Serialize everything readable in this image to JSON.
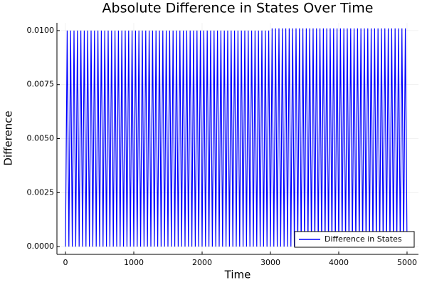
{
  "chart_data": {
    "type": "line",
    "title": "Absolute Difference in States Over Time",
    "x_label": "Time",
    "y_label": "Difference",
    "x": [
      0,
      25,
      50,
      75,
      100,
      125,
      150,
      175,
      200,
      225,
      250,
      275,
      300,
      325,
      350,
      375,
      400,
      425,
      450,
      475,
      500,
      525,
      550,
      575,
      600,
      625,
      650,
      675,
      700,
      725,
      750,
      775,
      800,
      825,
      850,
      875,
      900,
      925,
      950,
      975,
      1000,
      1025,
      1050,
      1075,
      1100,
      1125,
      1150,
      1175,
      1200,
      1225,
      1250,
      1275,
      1300,
      1325,
      1350,
      1375,
      1400,
      1425,
      1450,
      1475,
      1500,
      1525,
      1550,
      1575,
      1600,
      1625,
      1650,
      1675,
      1700,
      1725,
      1750,
      1775,
      1800,
      1825,
      1850,
      1875,
      1900,
      1925,
      1950,
      1975,
      2000,
      2025,
      2050,
      2075,
      2100,
      2125,
      2150,
      2175,
      2200,
      2225,
      2250,
      2275,
      2300,
      2325,
      2350,
      2375,
      2400,
      2425,
      2450,
      2475,
      2500,
      2525,
      2550,
      2575,
      2600,
      2625,
      2650,
      2675,
      2700,
      2725,
      2750,
      2775,
      2800,
      2825,
      2850,
      2875,
      2900,
      2925,
      2950,
      2975,
      3000,
      3025,
      3050,
      3075,
      3100,
      3125,
      3150,
      3175,
      3200,
      3225,
      3250,
      3275,
      3300,
      3325,
      3350,
      3375,
      3400,
      3425,
      3450,
      3475,
      3500,
      3525,
      3550,
      3575,
      3600,
      3625,
      3650,
      3675,
      3700,
      3725,
      3750,
      3775,
      3800,
      3825,
      3850,
      3875,
      3900,
      3925,
      3950,
      3975,
      4000,
      4025,
      4050,
      4075,
      4100,
      4125,
      4150,
      4175,
      4200,
      4225,
      4250,
      4275,
      4300,
      4325,
      4350,
      4375,
      4400,
      4425,
      4450,
      4475,
      4500,
      4525,
      4550,
      4575,
      4600,
      4625,
      4650,
      4675,
      4700,
      4725,
      4750,
      4775,
      4800,
      4825,
      4850,
      4875,
      4900,
      4925,
      4950,
      4975,
      5000
    ],
    "series": [
      {
        "name": "Difference in States",
        "color": "#0000ff",
        "values": [
          0,
          0.01,
          0,
          0.01,
          0,
          0.01,
          0,
          0.01,
          0,
          0.01,
          0,
          0.01,
          0,
          0.01,
          0,
          0.01,
          0,
          0.01,
          0,
          0.01,
          0,
          0.01,
          0,
          0.01,
          0,
          0.01,
          0,
          0.01,
          0,
          0.01,
          0,
          0.01,
          0,
          0.01,
          0,
          0.01,
          0,
          0.01,
          0,
          0.01,
          0,
          0.01,
          0,
          0.01,
          0,
          0.01,
          0,
          0.01,
          0,
          0.01,
          0,
          0.01,
          0,
          0.01,
          0,
          0.01,
          0,
          0.01,
          0,
          0.01,
          0,
          0.01,
          0,
          0.01,
          0,
          0.01,
          0,
          0.01,
          0,
          0.01,
          0,
          0.01,
          0,
          0.01,
          0,
          0.01,
          0,
          0.01,
          0,
          0.01,
          0,
          0.01,
          0,
          0.01,
          0,
          0.01,
          0,
          0.01,
          0,
          0.01,
          0,
          0.01,
          0,
          0.01,
          0,
          0.01,
          0,
          0.01,
          0,
          0.01,
          0,
          0.01,
          0,
          0.01,
          0,
          0.01,
          0,
          0.01,
          0,
          0.01,
          0,
          0.01,
          0,
          0.01,
          0,
          0.01,
          0,
          0.01,
          0,
          0.01,
          0,
          0.0101,
          0,
          0.0101,
          0,
          0.0101,
          0,
          0.0101,
          0,
          0.0101,
          0,
          0.0101,
          0,
          0.0101,
          0,
          0.0101,
          0,
          0.0101,
          0,
          0.0101,
          0,
          0.0101,
          0,
          0.0101,
          0,
          0.0101,
          0,
          0.0101,
          0,
          0.0101,
          0,
          0.0101,
          0,
          0.0101,
          0,
          0.0101,
          0,
          0.0101,
          0,
          0.0101,
          0,
          0.0101,
          0,
          0.0101,
          0,
          0.0101,
          0,
          0.0101,
          0,
          0.0101,
          0,
          0.0101,
          0,
          0.0101,
          0,
          0.0101,
          0,
          0.0101,
          0,
          0.0101,
          0,
          0.0101,
          0,
          0.0101,
          0,
          0.0101,
          0,
          0.0101,
          0,
          0.0101,
          0,
          0.0101,
          0,
          0.0101,
          0,
          0.0101,
          0,
          0.0101,
          0,
          0.0101,
          0
        ]
      }
    ],
    "xlim": [
      -125,
      5167
    ],
    "xticks": [
      0,
      1000,
      2000,
      3000,
      4000,
      5000
    ],
    "ylim": [
      -0.00036,
      0.01036
    ],
    "yticks": [
      {
        "value": 0,
        "label": "0.0000"
      },
      {
        "value": 0.0025,
        "label": "0.0025"
      },
      {
        "value": 0.005,
        "label": "0.0050"
      },
      {
        "value": 0.0075,
        "label": "0.0075"
      },
      {
        "value": 0.01,
        "label": "0.0100"
      }
    ],
    "grid": true,
    "legend": "bottom-right"
  }
}
